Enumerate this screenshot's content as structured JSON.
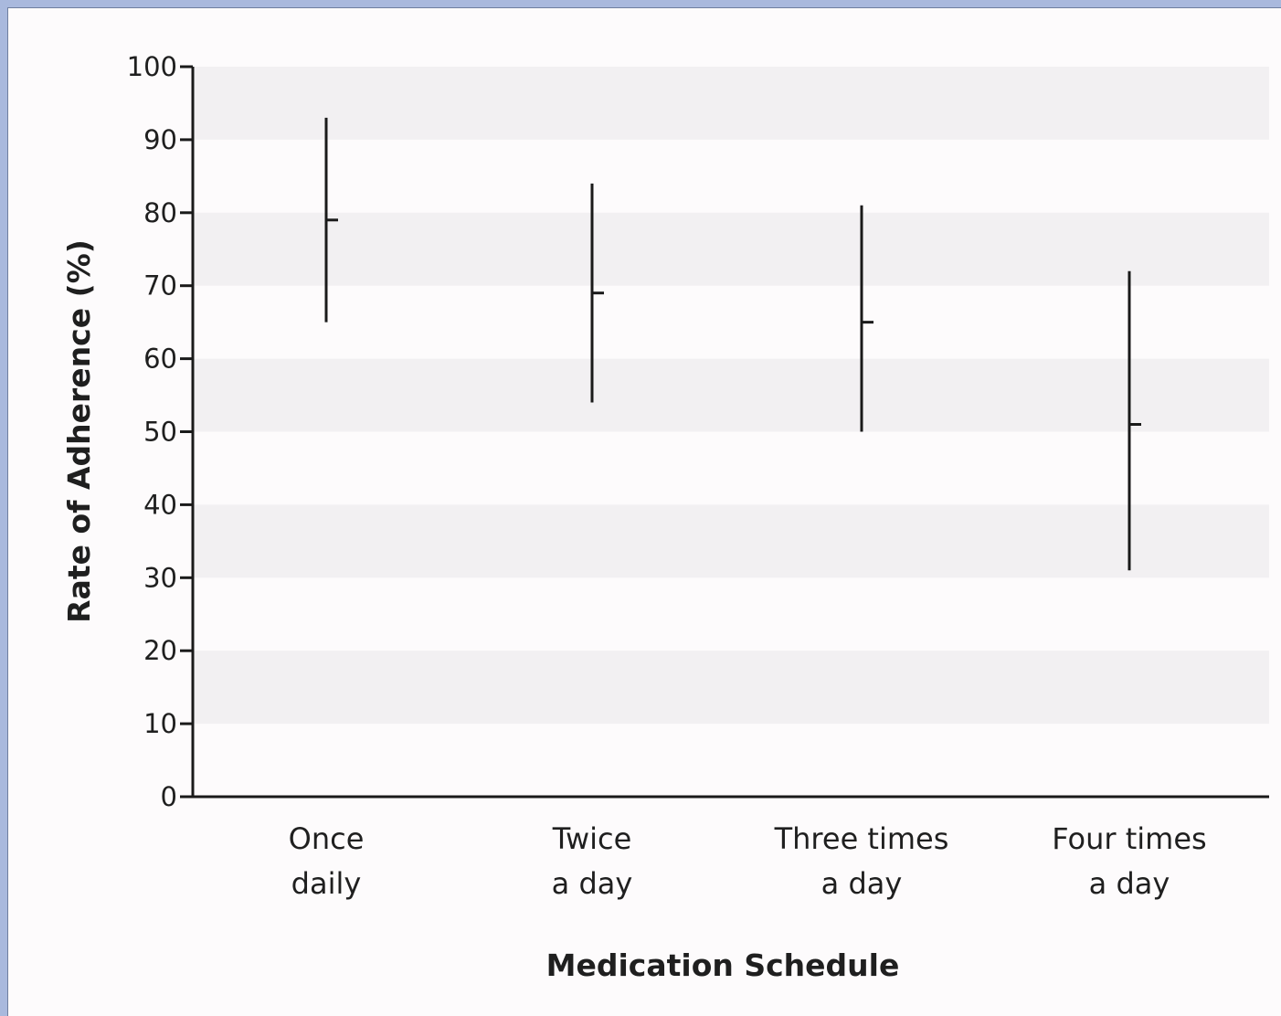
{
  "chart_data": {
    "type": "errorbar",
    "xlabel": "Medication Schedule",
    "ylabel": "Rate of Adherence (%)",
    "ylim": [
      0,
      100
    ],
    "yticks": [
      0,
      10,
      20,
      30,
      40,
      50,
      60,
      70,
      80,
      90,
      100
    ],
    "grid": "alternating horizontal bands",
    "categories": [
      [
        "Once",
        "daily"
      ],
      [
        "Twice",
        "a day"
      ],
      [
        "Three times",
        "a day"
      ],
      [
        "Four times",
        "a day"
      ]
    ],
    "values": [
      79,
      69,
      65,
      51
    ],
    "lower": [
      65,
      54,
      50,
      31
    ],
    "upper": [
      93,
      84,
      81,
      72
    ],
    "colors": {
      "line": "#1a1a1a",
      "band": "#f2f0f2",
      "background": "#fdfbfc"
    }
  }
}
